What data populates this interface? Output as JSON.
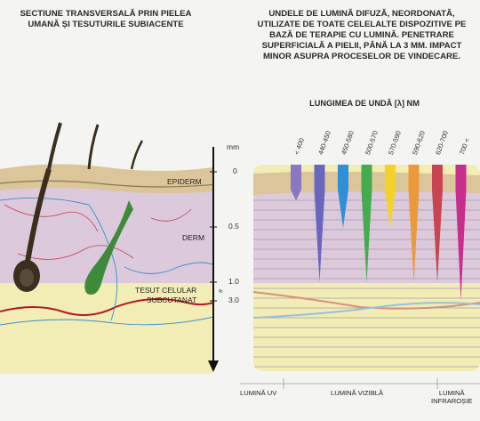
{
  "left_title": "SECTIUNE TRANSVERSALĂ PRIN PIELEA UMANĂ ȘI TESUTURILE SUBIACENTE",
  "right_title": "UNDELE DE LUMINĂ DIFUZĂ, NEORDONATĂ, UTILIZATE DE TOATE CELELALTE DISPOZITIVE PE BAZĂ DE TERAPIE CU LUMINĂ. PENETRARE SUPERFICIALĂ A PIELII, PÂNĂ LA 3 MM. IMPACT MINOR ASUPRA PROCESELOR DE VINDECARE.",
  "wavelength_title": "LUNGIMEA DE UNDĂ [λ] NM",
  "layers": {
    "epidermis": "EPIDERM",
    "dermis": "DERM",
    "subcutaneous": "TESUT CELULAR\nSUBCUTANAT"
  },
  "depth_scale": {
    "unit": "mm",
    "ticks": [
      "0",
      "0.5",
      "1.0",
      "3.0"
    ]
  },
  "wavelengths": [
    {
      "label": "< 400",
      "color": "#8a78c2",
      "depth_mm": 0.25
    },
    {
      "label": "440-450",
      "color": "#6a66c0",
      "depth_mm": 1.0
    },
    {
      "label": "450-580",
      "color": "#2f8fd8",
      "depth_mm": 0.5
    },
    {
      "label": "500-570",
      "color": "#46ab4e",
      "depth_mm": 1.0
    },
    {
      "label": "570-590",
      "color": "#f3d22a",
      "depth_mm": 0.5
    },
    {
      "label": "590-620",
      "color": "#ea9a3a",
      "depth_mm": 1.0
    },
    {
      "label": "620-700",
      "color": "#c94452",
      "depth_mm": 1.0
    },
    {
      "label": "700 <",
      "color": "#c72f8c",
      "depth_mm": 3.0
    }
  ],
  "spectrum": {
    "uv": "LUMINĂ UV",
    "visible": "LUMINĂ VIZIBLĂ",
    "infrared": "LUMINĂ\nINFRAROȘIE"
  },
  "colors": {
    "epidermis": "#dcc59a",
    "dermis": "#dcc9dc",
    "subcutaneous": "#f1edb4",
    "hair": "#3b2e1e",
    "follicle_gland": "#3f8a3a"
  }
}
